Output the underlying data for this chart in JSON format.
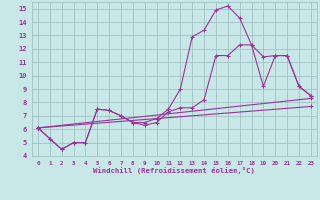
{
  "bg_color": "#c8e8e8",
  "line_color": "#993399",
  "grid_color": "#99bbbb",
  "xlabel": "Windchill (Refroidissement éolien,°C)",
  "xlabel_color": "#993399",
  "xlim": [
    -0.5,
    23.5
  ],
  "ylim": [
    4,
    15.5
  ],
  "yticks": [
    4,
    5,
    6,
    7,
    8,
    9,
    10,
    11,
    12,
    13,
    14,
    15
  ],
  "xticks": [
    0,
    1,
    2,
    3,
    4,
    5,
    6,
    7,
    8,
    9,
    10,
    11,
    12,
    13,
    14,
    15,
    16,
    17,
    18,
    19,
    20,
    21,
    22,
    23
  ],
  "line1_x": [
    0,
    1,
    2,
    3,
    4,
    5,
    6,
    7,
    8,
    9,
    10,
    11,
    12,
    13,
    14,
    15,
    16,
    17,
    18,
    19,
    20,
    21,
    22,
    23
  ],
  "line1_y": [
    6.1,
    5.3,
    4.5,
    5.0,
    5.0,
    7.5,
    7.4,
    7.0,
    6.5,
    6.5,
    6.8,
    7.5,
    9.0,
    12.9,
    13.4,
    14.9,
    15.2,
    14.3,
    12.3,
    9.2,
    11.5,
    11.5,
    9.2,
    8.5
  ],
  "line2_x": [
    0,
    1,
    2,
    3,
    4,
    5,
    6,
    7,
    8,
    9,
    10,
    11,
    12,
    13,
    14,
    15,
    16,
    17,
    18,
    19,
    20,
    21,
    22,
    23
  ],
  "line2_y": [
    6.1,
    5.3,
    4.5,
    5.0,
    5.0,
    7.5,
    7.4,
    7.0,
    6.5,
    6.3,
    6.5,
    7.3,
    7.6,
    7.6,
    8.2,
    11.5,
    11.5,
    12.3,
    12.3,
    11.4,
    11.5,
    11.5,
    9.2,
    8.5
  ],
  "line3_x": [
    0,
    23
  ],
  "line3_y": [
    6.1,
    8.3
  ],
  "line4_x": [
    0,
    23
  ],
  "line4_y": [
    6.1,
    7.7
  ]
}
